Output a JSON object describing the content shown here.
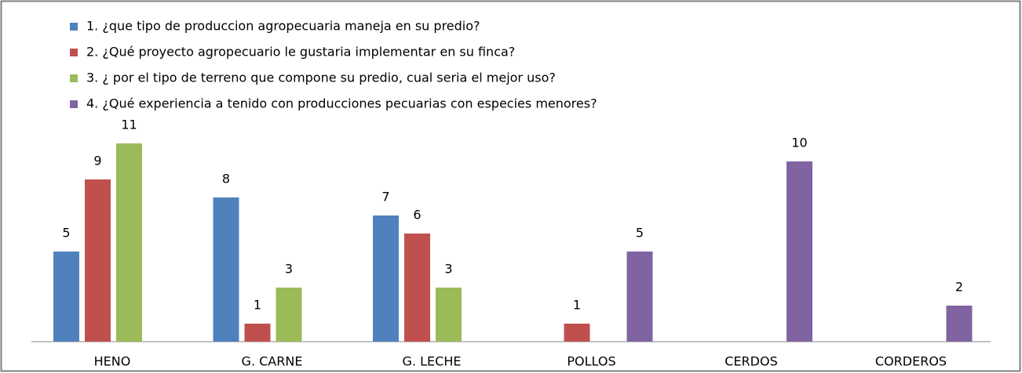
{
  "chart_data": {
    "type": "bar",
    "categories": [
      "HENO",
      "G. CARNE",
      "G. LECHE",
      "POLLOS",
      "CERDOS",
      "CORDEROS"
    ],
    "series": [
      {
        "name": "1. ¿que tipo de produccion agropecuaria maneja en su predio?",
        "color": "#4f81bd",
        "values": [
          5,
          8,
          7,
          null,
          null,
          null
        ]
      },
      {
        "name": "2. ¿Qué proyecto agropecuario le gustaria implementar en su finca?",
        "color": "#c0504d",
        "values": [
          9,
          1,
          6,
          1,
          null,
          null
        ]
      },
      {
        "name": "3. ¿ por el tipo de terreno que compone su predio, cual seria el mejor uso?",
        "color": "#9bbb59",
        "values": [
          11,
          3,
          3,
          null,
          null,
          null
        ]
      },
      {
        "name": "4. ¿Qué experiencia a tenido con producciones pecuarias con especies menores?",
        "color": "#8064a2",
        "values": [
          null,
          null,
          null,
          5,
          10,
          2
        ]
      }
    ]
  }
}
